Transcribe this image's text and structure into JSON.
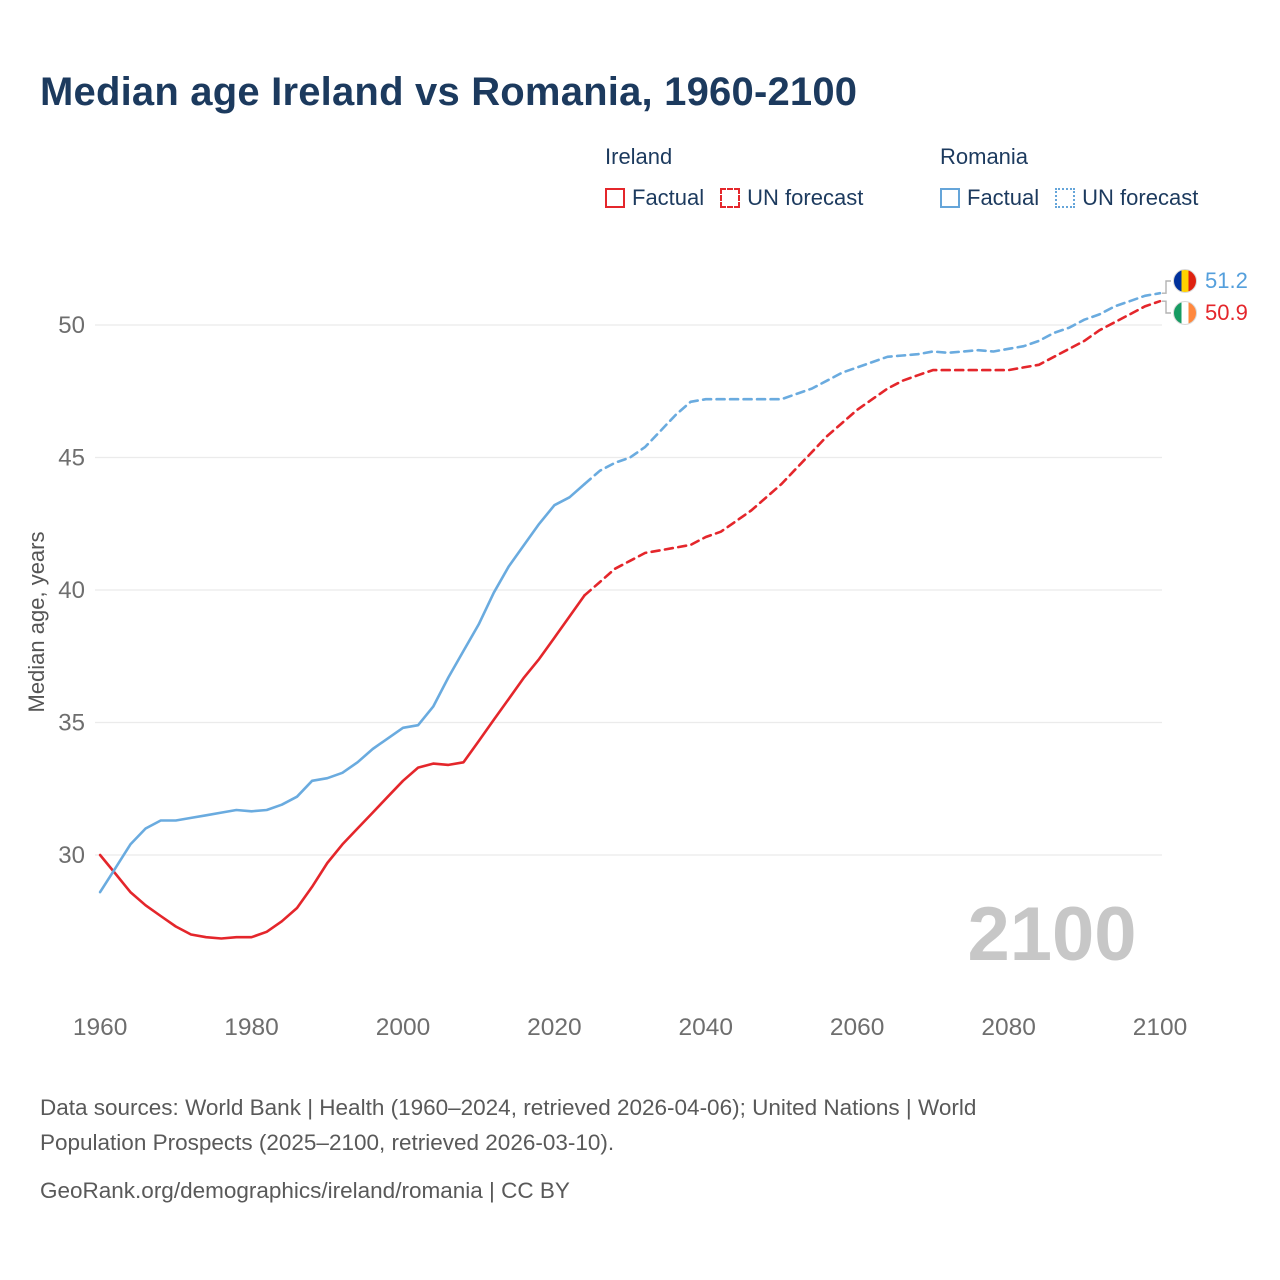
{
  "title": "Median age Ireland vs Romania, 1960-2100",
  "watermark": "2100",
  "legend": {
    "ireland_header": "Ireland",
    "romania_header": "Romania",
    "factual_label": "Factual",
    "forecast_label": "UN forecast"
  },
  "end_labels": {
    "romania": {
      "value": "51.2",
      "flag": "romania-flag"
    },
    "ireland": {
      "value": "50.9",
      "flag": "ireland-flag"
    }
  },
  "footer": {
    "line1": "Data sources: World Bank | Health (1960–2024, retrieved 2026-04-06); United Nations | World",
    "line2": "Population Prospects (2025–2100, retrieved 2026-03-10).",
    "line3": "GeoRank.org/demographics/ireland/romania | CC BY"
  },
  "colors": {
    "ireland": "#e4262b",
    "romania": "#6aabdf",
    "title": "#1c3a5e",
    "axis_text": "#6e6e6e",
    "grid": "#ebebeb",
    "watermark": "#c7c7c7",
    "footer": "#595959",
    "connector": "#b3b3b3",
    "romania_flag": [
      "#00319c",
      "#ffd200",
      "#de2110"
    ],
    "ireland_flag": [
      "#169b62",
      "#ffffff",
      "#ff883e"
    ]
  },
  "chart_data": {
    "type": "line",
    "title": "Median age Ireland vs Romania, 1960-2100",
    "xlabel": "",
    "ylabel": "Median age, years",
    "xlim": [
      1958,
      2100
    ],
    "ylim": [
      26,
      52
    ],
    "xticks": [
      1960,
      1980,
      2000,
      2020,
      2040,
      2060,
      2080,
      2100
    ],
    "yticks": [
      30,
      35,
      40,
      45,
      50
    ],
    "grid": "horizontal-only",
    "legend_position": "top",
    "series": [
      {
        "name": "Ireland Factual",
        "slug": "ireland-factual-line",
        "color_key": "ireland",
        "style": "solid",
        "x": [
          1960,
          1962,
          1964,
          1966,
          1968,
          1970,
          1972,
          1974,
          1976,
          1978,
          1980,
          1982,
          1984,
          1986,
          1988,
          1990,
          1992,
          1994,
          1996,
          1998,
          2000,
          2002,
          2004,
          2006,
          2008,
          2010,
          2012,
          2014,
          2016,
          2018,
          2020,
          2022,
          2024
        ],
        "y": [
          30.0,
          29.3,
          28.6,
          28.1,
          27.7,
          27.3,
          27.0,
          26.9,
          26.85,
          26.9,
          26.9,
          27.1,
          27.5,
          28.0,
          28.8,
          29.7,
          30.4,
          31.0,
          31.6,
          32.2,
          32.8,
          33.3,
          33.45,
          33.4,
          33.5,
          34.3,
          35.1,
          35.9,
          36.7,
          37.4,
          38.2,
          39.0,
          39.8
        ]
      },
      {
        "name": "Ireland UN forecast",
        "slug": "ireland-forecast-line",
        "color_key": "ireland",
        "style": "dashed",
        "x": [
          2024,
          2026,
          2028,
          2030,
          2032,
          2034,
          2036,
          2038,
          2040,
          2042,
          2044,
          2046,
          2048,
          2050,
          2052,
          2054,
          2056,
          2058,
          2060,
          2062,
          2064,
          2066,
          2068,
          2070,
          2072,
          2074,
          2076,
          2078,
          2080,
          2082,
          2084,
          2086,
          2088,
          2090,
          2092,
          2094,
          2096,
          2098,
          2100
        ],
        "y": [
          39.8,
          40.3,
          40.8,
          41.1,
          41.4,
          41.5,
          41.6,
          41.7,
          42.0,
          42.2,
          42.6,
          43.0,
          43.5,
          44.0,
          44.6,
          45.2,
          45.8,
          46.3,
          46.8,
          47.2,
          47.6,
          47.9,
          48.1,
          48.3,
          48.3,
          48.3,
          48.3,
          48.3,
          48.3,
          48.4,
          48.5,
          48.8,
          49.1,
          49.4,
          49.8,
          50.1,
          50.4,
          50.7,
          50.9
        ]
      },
      {
        "name": "Romania Factual",
        "slug": "romania-factual-line",
        "color_key": "romania",
        "style": "solid",
        "x": [
          1960,
          1962,
          1964,
          1966,
          1968,
          1970,
          1972,
          1974,
          1976,
          1978,
          1980,
          1982,
          1984,
          1986,
          1988,
          1990,
          1992,
          1994,
          1996,
          1998,
          2000,
          2002,
          2004,
          2006,
          2008,
          2010,
          2012,
          2014,
          2016,
          2018,
          2020,
          2022,
          2024
        ],
        "y": [
          28.6,
          29.5,
          30.4,
          31.0,
          31.3,
          31.3,
          31.4,
          31.5,
          31.6,
          31.7,
          31.65,
          31.7,
          31.9,
          32.2,
          32.8,
          32.9,
          33.1,
          33.5,
          34.0,
          34.4,
          34.8,
          34.9,
          35.6,
          36.7,
          37.7,
          38.7,
          39.9,
          40.9,
          41.7,
          42.5,
          43.2,
          43.5,
          44.0
        ]
      },
      {
        "name": "Romania UN forecast",
        "slug": "romania-forecast-line",
        "color_key": "romania",
        "style": "dashed",
        "x": [
          2024,
          2026,
          2028,
          2030,
          2032,
          2034,
          2036,
          2038,
          2040,
          2042,
          2044,
          2046,
          2048,
          2050,
          2052,
          2054,
          2056,
          2058,
          2060,
          2062,
          2064,
          2066,
          2068,
          2070,
          2072,
          2074,
          2076,
          2078,
          2080,
          2082,
          2084,
          2086,
          2088,
          2090,
          2092,
          2094,
          2096,
          2098,
          2100
        ],
        "y": [
          44.0,
          44.5,
          44.8,
          45.0,
          45.4,
          46.0,
          46.6,
          47.1,
          47.2,
          47.2,
          47.2,
          47.2,
          47.2,
          47.2,
          47.4,
          47.6,
          47.9,
          48.2,
          48.4,
          48.6,
          48.8,
          48.85,
          48.9,
          49.0,
          48.95,
          49.0,
          49.05,
          49.0,
          49.1,
          49.2,
          49.4,
          49.7,
          49.9,
          50.2,
          50.4,
          50.7,
          50.9,
          51.1,
          51.2
        ]
      }
    ]
  }
}
